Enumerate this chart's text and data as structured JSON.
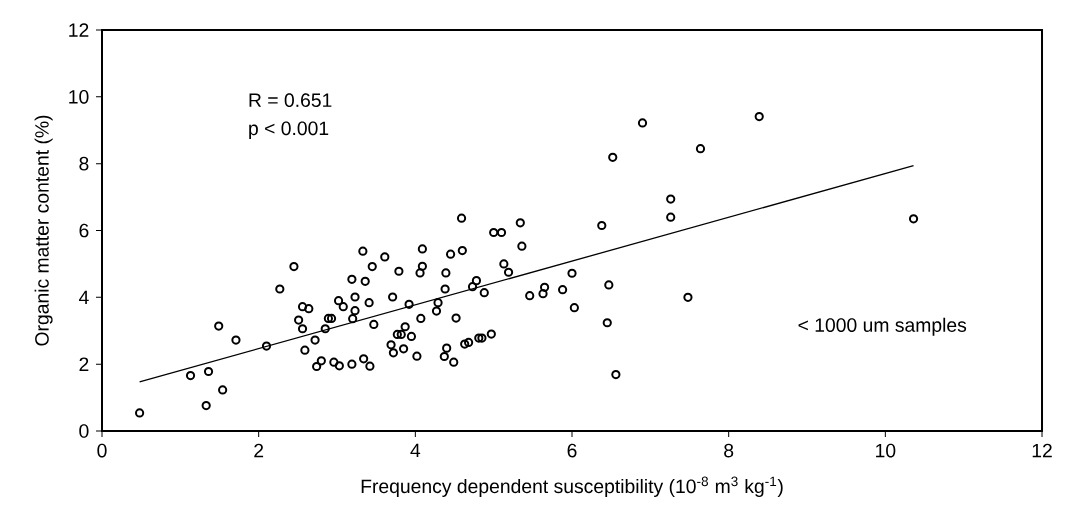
{
  "chart_data": {
    "type": "scatter",
    "xlabel": "Frequency dependent susceptibility  (10$^{-8}$ m$^{3}$ kg$^{-1}$)",
    "ylabel": "Organic matter content (%)",
    "annotations": [
      "R = 0.651",
      "p < 0.001",
      "< 1000 um samples"
    ],
    "xlim": [
      0,
      12
    ],
    "ylim": [
      0,
      12
    ],
    "xticks": [
      0,
      2,
      4,
      6,
      8,
      10,
      12
    ],
    "yticks": [
      0,
      2,
      4,
      6,
      8,
      10,
      12
    ],
    "marker": "circle",
    "series": [
      {
        "color": "#000000",
        "x": [
          0.48,
          1.13,
          1.36,
          1.33,
          1.54,
          1.49,
          1.71,
          2.1,
          2.27,
          2.45,
          2.56,
          2.64,
          2.51,
          2.56,
          2.59,
          2.72,
          2.74,
          2.8,
          2.85,
          2.89,
          2.93,
          2.96,
          3.03,
          3.02,
          3.08,
          3.19,
          3.23,
          3.23,
          3.2,
          3.19,
          3.33,
          3.34,
          3.36,
          3.42,
          3.41,
          3.45,
          3.47,
          3.61,
          3.71,
          3.79,
          3.77,
          3.82,
          3.69,
          3.72,
          3.85,
          3.87,
          3.95,
          3.92,
          4.02,
          4.07,
          4.06,
          4.09,
          4.09,
          4.27,
          4.29,
          4.38,
          4.39,
          4.45,
          4.6,
          4.59,
          4.4,
          4.37,
          4.49,
          4.52,
          4.63,
          4.68,
          4.73,
          4.78,
          4.88,
          4.81,
          4.85,
          4.97,
          5.0,
          5.1,
          5.34,
          5.36,
          5.13,
          5.19,
          5.46,
          5.63,
          5.65,
          5.88,
          6.0,
          6.03,
          6.9,
          8.39,
          6.52,
          7.64,
          7.26,
          7.26,
          6.38,
          10.36,
          6.47,
          7.48,
          6.45,
          6.56
        ],
        "values": [
          0.54,
          1.66,
          1.78,
          0.76,
          1.23,
          3.14,
          2.72,
          2.54,
          4.25,
          4.92,
          3.72,
          3.66,
          3.32,
          3.06,
          2.42,
          2.72,
          1.93,
          2.1,
          3.06,
          3.37,
          3.37,
          2.06,
          1.95,
          3.9,
          3.72,
          4.54,
          4.01,
          3.6,
          3.36,
          2.0,
          5.38,
          2.16,
          4.48,
          1.94,
          3.84,
          4.92,
          3.19,
          5.21,
          4.01,
          4.78,
          2.89,
          2.89,
          2.58,
          2.34,
          2.46,
          3.12,
          2.83,
          3.79,
          2.24,
          3.37,
          4.73,
          4.93,
          5.45,
          3.59,
          3.84,
          4.25,
          4.73,
          5.29,
          5.4,
          6.37,
          2.48,
          2.23,
          2.06,
          3.38,
          2.6,
          2.65,
          4.32,
          4.5,
          4.14,
          2.78,
          2.78,
          2.9,
          5.94,
          5.94,
          6.23,
          5.53,
          5.0,
          4.75,
          4.05,
          4.11,
          4.3,
          4.23,
          4.72,
          3.69,
          9.22,
          9.41,
          8.19,
          8.45,
          6.94,
          6.4,
          6.15,
          6.35,
          4.37,
          4.0,
          3.24,
          1.69
        ]
      },
      {
        "type": "line",
        "color": "#000000",
        "marker": "none",
        "line_style": "solid",
        "x": [
          0.48,
          10.36
        ],
        "values": [
          1.47,
          7.94
        ]
      }
    ]
  }
}
